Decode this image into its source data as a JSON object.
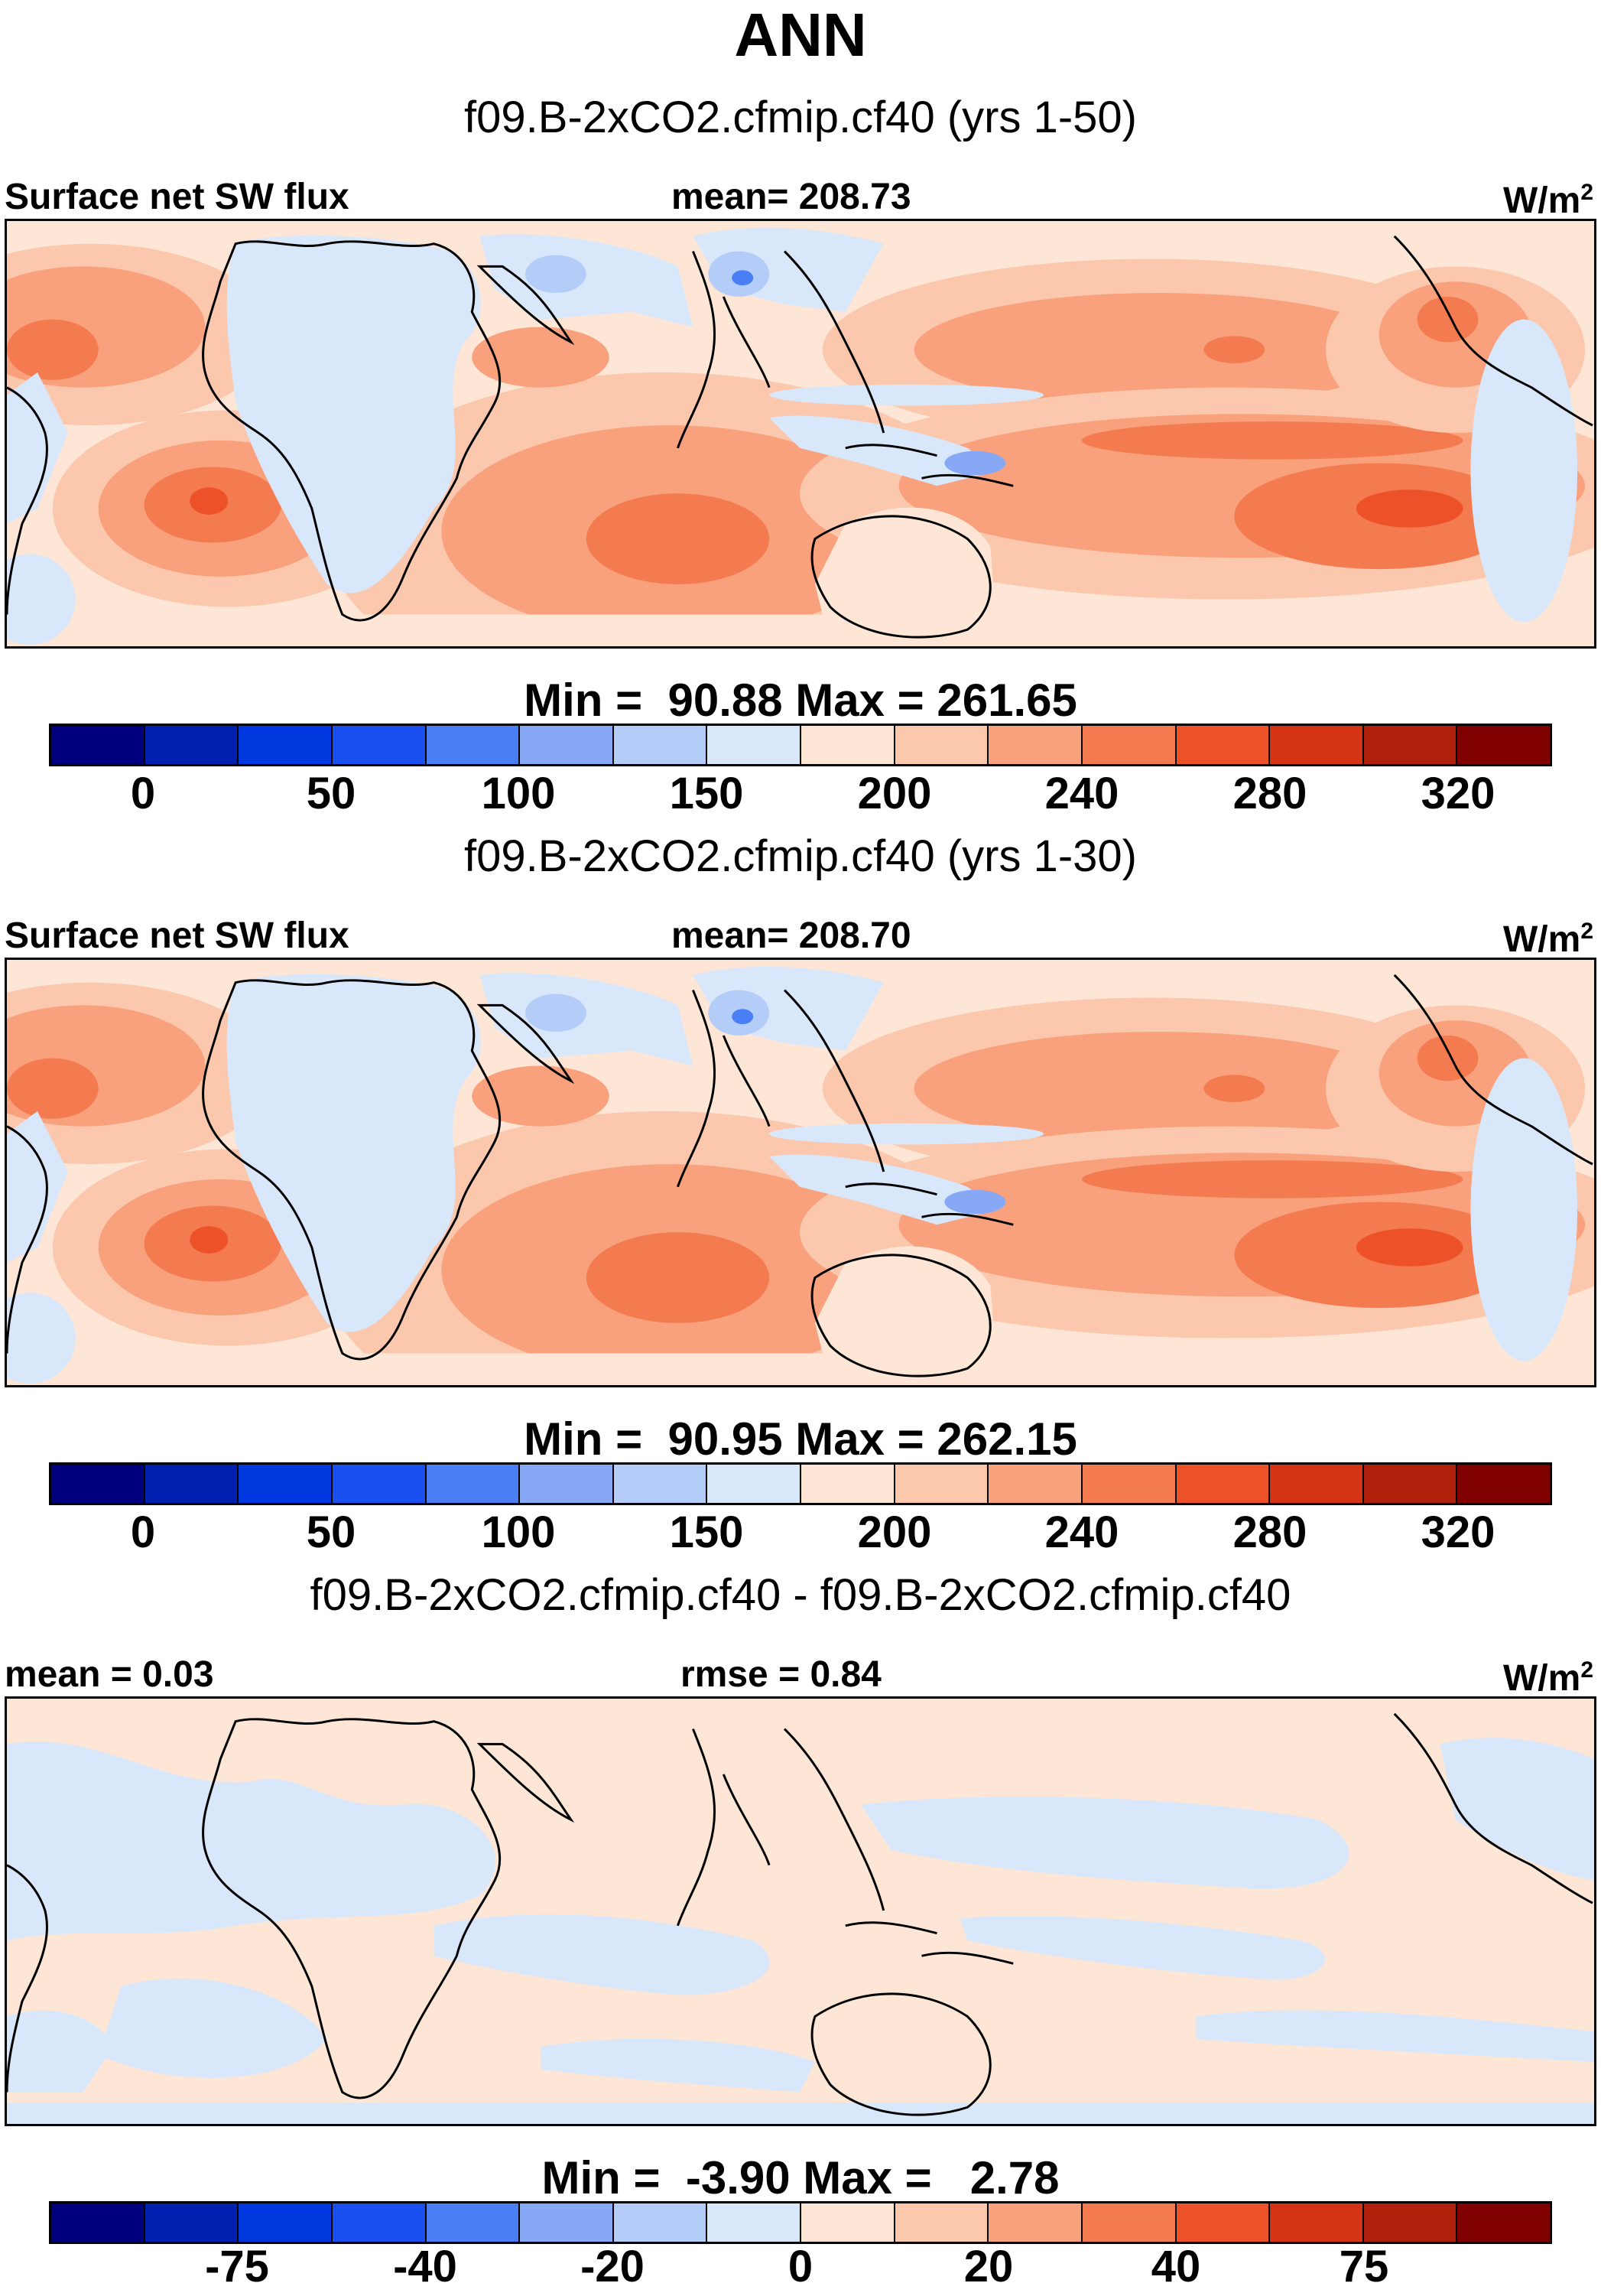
{
  "figure_title": "ANN",
  "panels": [
    {
      "case_title": "f09.B-2xCO2.cfmip.cf40 (yrs 1-50)",
      "left_label": "Surface net SW flux",
      "center_label": "mean= 208.73",
      "right_label": "W/m",
      "right_sup": "2",
      "minmax": "Min =  90.88 Max = 261.65",
      "colorbar_ticks": [
        "0",
        "50",
        "100",
        "150",
        "200",
        "240",
        "280",
        "320"
      ]
    },
    {
      "case_title": "f09.B-2xCO2.cfmip.cf40 (yrs 1-30)",
      "left_label": "Surface net SW flux",
      "center_label": "mean= 208.70",
      "right_label": "W/m",
      "right_sup": "2",
      "minmax": "Min =  90.95 Max = 262.15",
      "colorbar_ticks": [
        "0",
        "50",
        "100",
        "150",
        "200",
        "240",
        "280",
        "320"
      ]
    },
    {
      "case_title": "f09.B-2xCO2.cfmip.cf40 - f09.B-2xCO2.cfmip.cf40",
      "left_label": "mean =   0.03",
      "center_label": "rmse =   0.84",
      "right_label": "W/m",
      "right_sup": "2",
      "minmax": "Min =  -3.90 Max =   2.78",
      "colorbar_ticks": [
        "-75",
        "-40",
        "-20",
        "0",
        "20",
        "40",
        "75"
      ]
    }
  ],
  "colors": {
    "scale": [
      "#00007f",
      "#0020b0",
      "#0038e0",
      "#1a50f0",
      "#4a7ef5",
      "#86a8f5",
      "#b4ccf8",
      "#d9e7fb",
      "#fde6d6",
      "#fbc8ae",
      "#f9a07c",
      "#f47a50",
      "#ec5128",
      "#d63214",
      "#b0200c",
      "#800000"
    ],
    "ocean_base": "#fde6d6",
    "diff_base": "#fde6d6",
    "diff_blue": "#d9e7fb",
    "coast": "#000000"
  },
  "chart_data": [
    {
      "type": "heatmap",
      "title": "f09.B-2xCO2.cfmip.cf40 (yrs 1-50)",
      "variable": "Surface net SW flux",
      "units": "W/m2",
      "mean": 208.73,
      "min": 90.88,
      "max": 261.65,
      "colorbar_levels": [
        0,
        25,
        50,
        75,
        100,
        125,
        150,
        175,
        200,
        220,
        240,
        260,
        280,
        300,
        320
      ],
      "colorbar_tick_labels": [
        "0",
        "50",
        "100",
        "150",
        "200",
        "240",
        "280",
        "320"
      ]
    },
    {
      "type": "heatmap",
      "title": "f09.B-2xCO2.cfmip.cf40 (yrs 1-30)",
      "variable": "Surface net SW flux",
      "units": "W/m2",
      "mean": 208.7,
      "min": 90.95,
      "max": 262.15,
      "colorbar_levels": [
        0,
        25,
        50,
        75,
        100,
        125,
        150,
        175,
        200,
        220,
        240,
        260,
        280,
        300,
        320
      ],
      "colorbar_tick_labels": [
        "0",
        "50",
        "100",
        "150",
        "200",
        "240",
        "280",
        "320"
      ]
    },
    {
      "type": "heatmap",
      "title": "f09.B-2xCO2.cfmip.cf40 - f09.B-2xCO2.cfmip.cf40",
      "units": "W/m2",
      "mean": 0.03,
      "rmse": 0.84,
      "min": -3.9,
      "max": 2.78,
      "colorbar_levels": [
        -100,
        -75,
        -50,
        -40,
        -30,
        -20,
        -10,
        0,
        10,
        20,
        30,
        40,
        50,
        75,
        100
      ],
      "colorbar_tick_labels": [
        "-75",
        "-40",
        "-20",
        "0",
        "20",
        "40",
        "75"
      ]
    }
  ]
}
